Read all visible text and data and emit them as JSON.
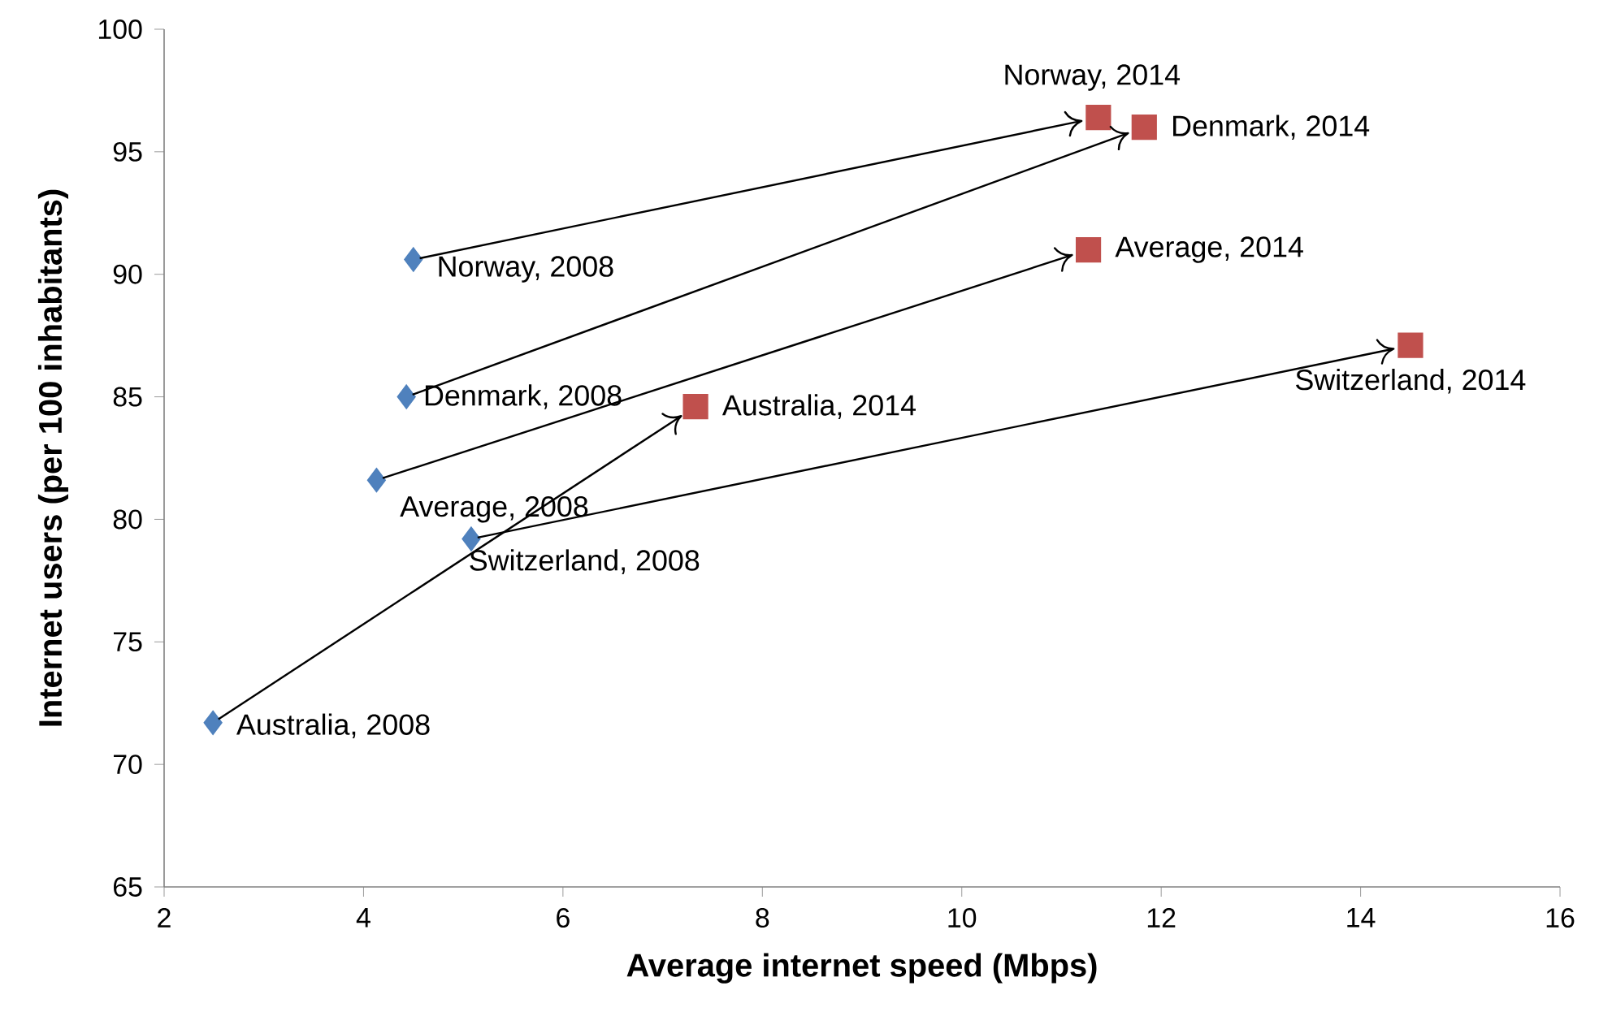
{
  "chart_data": {
    "type": "scatter",
    "xlabel": "Average internet speed (Mbps)",
    "ylabel": "Internet users (per 100 inhabitants)",
    "xlim": [
      2,
      16
    ],
    "xticks": [
      2,
      4,
      6,
      8,
      10,
      12,
      14,
      16
    ],
    "ylim": [
      65,
      100
    ],
    "yticks": [
      65,
      70,
      75,
      80,
      85,
      90,
      95,
      100
    ],
    "series": [
      {
        "color": "#4f81bd",
        "marker": "diamond",
        "x": [
          4.5,
          4.43,
          4.13,
          5.08,
          2.49
        ],
        "values": [
          90.6,
          85.0,
          81.6,
          79.2,
          71.7
        ]
      },
      {
        "color": "#c0504d",
        "marker": "square",
        "x": [
          11.37,
          11.83,
          11.27,
          14.5,
          7.33
        ],
        "values": [
          96.4,
          96.0,
          91.0,
          87.1,
          84.6
        ]
      }
    ],
    "annotations": [
      {
        "text": "Norway, 2008",
        "x": 4.5,
        "y": 90.6
      },
      {
        "text": "Denmark, 2008",
        "x": 4.43,
        "y": 85.0
      },
      {
        "text": "Average,  2008",
        "x": 4.13,
        "y": 81.6
      },
      {
        "text": "Switzerland, 2008",
        "x": 5.08,
        "y": 79.2
      },
      {
        "text": "Australia, 2008",
        "x": 2.49,
        "y": 71.7
      },
      {
        "text": "Norway, 2014",
        "x": 11.37,
        "y": 96.4
      },
      {
        "text": "Denmark, 2014",
        "x": 11.83,
        "y": 96.0
      },
      {
        "text": "Average,  2014",
        "x": 11.27,
        "y": 91.0
      },
      {
        "text": "Switzerland, 2014",
        "x": 14.5,
        "y": 87.1
      },
      {
        "text": "Australia, 2014",
        "x": 7.33,
        "y": 84.6
      }
    ]
  }
}
